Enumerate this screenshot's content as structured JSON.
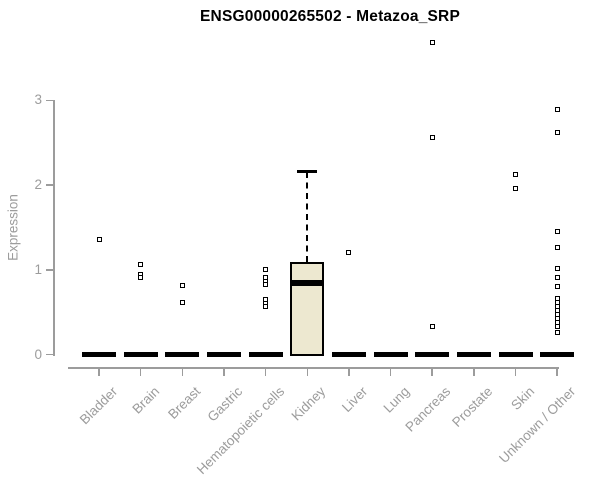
{
  "chart_data": {
    "type": "boxplot",
    "title": "ENSG00000265502 - Metazoa_SRP",
    "xlabel": "",
    "ylabel": "Expression",
    "ylim": [
      0,
      3
    ],
    "yticks": [
      0,
      1,
      2,
      3
    ],
    "grid": false,
    "legend": "none",
    "marker": "small-open-square",
    "categories": [
      "Bladder",
      "Brain",
      "Breast",
      "Gastric",
      "Hematopoietic cells",
      "Kidney",
      "Liver",
      "Lung",
      "Pancreas",
      "Prostate",
      "Skin",
      "Unknown / Other"
    ],
    "boxes": [
      {
        "category": "Bladder",
        "median": 0,
        "q1": 0,
        "q3": 0,
        "whisker_low": 0,
        "whisker_high": 0,
        "outliers": [
          1.36
        ]
      },
      {
        "category": "Brain",
        "median": 0,
        "q1": 0,
        "q3": 0,
        "whisker_low": 0,
        "whisker_high": 0,
        "outliers": [
          1.06,
          0.94,
          0.91
        ]
      },
      {
        "category": "Breast",
        "median": 0,
        "q1": 0,
        "q3": 0,
        "whisker_low": 0,
        "whisker_high": 0,
        "outliers": [
          0.81,
          0.61
        ]
      },
      {
        "category": "Gastric",
        "median": 0,
        "q1": 0,
        "q3": 0,
        "whisker_low": 0,
        "whisker_high": 0,
        "outliers": []
      },
      {
        "category": "Hematopoietic cells",
        "median": 0,
        "q1": 0,
        "q3": 0,
        "whisker_low": 0,
        "whisker_high": 0,
        "outliers": [
          1.0,
          0.91,
          0.86,
          0.83,
          0.65,
          0.6,
          0.57
        ]
      },
      {
        "category": "Kidney",
        "median": 0.84,
        "q1": 0,
        "q3": 1.09,
        "whisker_low": 0,
        "whisker_high": 2.16,
        "outliers": []
      },
      {
        "category": "Liver",
        "median": 0,
        "q1": 0,
        "q3": 0,
        "whisker_low": 0,
        "whisker_high": 0,
        "outliers": [
          1.2
        ]
      },
      {
        "category": "Lung",
        "median": 0,
        "q1": 0,
        "q3": 0,
        "whisker_low": 0,
        "whisker_high": 0,
        "outliers": []
      },
      {
        "category": "Pancreas",
        "median": 0,
        "q1": 0,
        "q3": 0,
        "whisker_low": 0,
        "whisker_high": 0,
        "outliers": [
          3.68,
          2.56,
          0.33
        ]
      },
      {
        "category": "Prostate",
        "median": 0,
        "q1": 0,
        "q3": 0,
        "whisker_low": 0,
        "whisker_high": 0,
        "outliers": []
      },
      {
        "category": "Skin",
        "median": 0,
        "q1": 0,
        "q3": 0,
        "whisker_low": 0,
        "whisker_high": 0,
        "outliers": [
          2.12,
          1.96
        ]
      },
      {
        "category": "Unknown / Other",
        "median": 0,
        "q1": 0,
        "q3": 0,
        "whisker_low": 0,
        "whisker_high": 0,
        "outliers": [
          2.89,
          2.62,
          1.45,
          1.26,
          1.01,
          0.91,
          0.8,
          0.66,
          0.61,
          0.57,
          0.52,
          0.47,
          0.42,
          0.38,
          0.33,
          0.26
        ]
      }
    ],
    "colors": {
      "box_fill": "#EDE8D0",
      "box_border": "#000000",
      "median": "#000000",
      "outlier": "#000000",
      "axis": "#9c9c9c",
      "tick_label": "#9c9c9c",
      "title": "#000000",
      "background": "#ffffff"
    }
  }
}
